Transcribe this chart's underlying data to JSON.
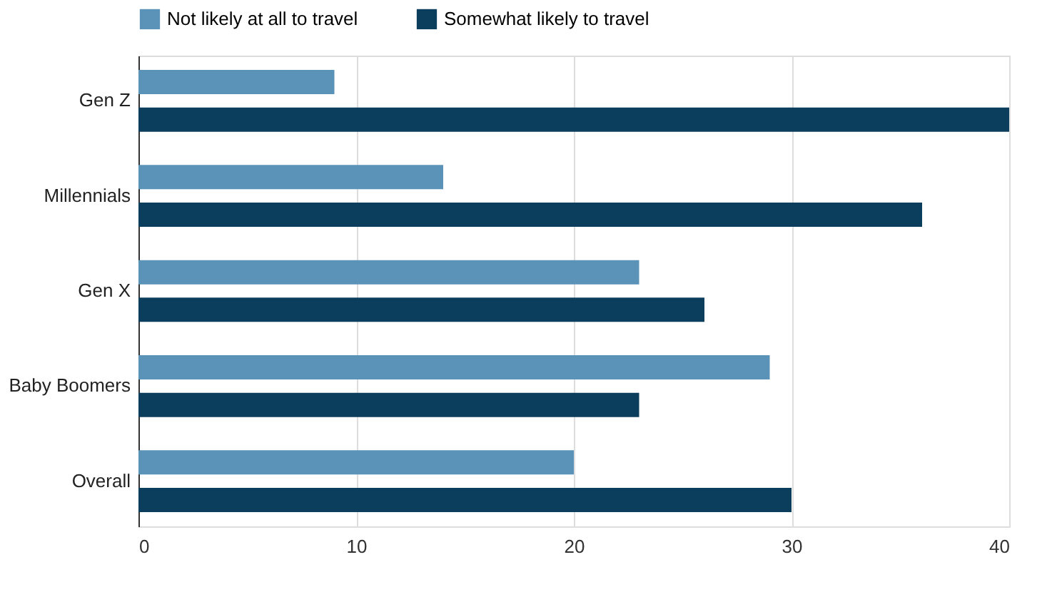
{
  "chart_data": {
    "type": "bar",
    "orientation": "horizontal",
    "categories": [
      "Gen Z",
      "Millennials",
      "Gen X",
      "Baby Boomers",
      "Overall"
    ],
    "series": [
      {
        "name": "Not likely at all to travel",
        "color": "#5b93b8",
        "values": [
          9,
          14,
          23,
          29,
          20
        ]
      },
      {
        "name": "Somewhat likely to travel",
        "color": "#0b3d5c",
        "values": [
          40,
          36,
          26,
          23,
          30
        ]
      }
    ],
    "xlim": [
      0,
      40
    ],
    "xticks": [
      0,
      10,
      20,
      30,
      40
    ],
    "grid": "x",
    "legend": "top"
  }
}
